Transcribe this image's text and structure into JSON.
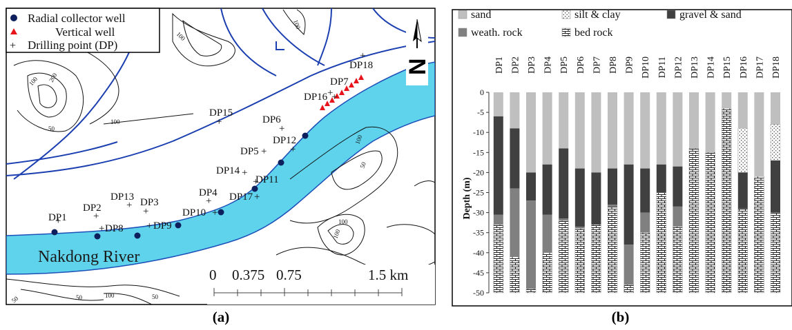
{
  "panel_a": {
    "caption": "(a)",
    "legend": {
      "radial": "Radial collector well",
      "vertical": "Vertical well",
      "drilling": "Drilling point (DP)"
    },
    "north_label": "N",
    "river_label": "Nakdong River",
    "scale": {
      "ticks": [
        "0",
        "0.375",
        "0.75",
        "1.5 km"
      ]
    },
    "contour_labels": [
      "100",
      "100",
      "100",
      "200",
      "100",
      "50",
      "100",
      "50",
      "100",
      "100",
      "50",
      "100",
      "50",
      "50",
      "100"
    ],
    "drilling_points": [
      {
        "name": "DP1"
      },
      {
        "name": "DP2"
      },
      {
        "name": "DP3"
      },
      {
        "name": "DP4"
      },
      {
        "name": "DP5"
      },
      {
        "name": "DP6"
      },
      {
        "name": "DP7"
      },
      {
        "name": "DP8"
      },
      {
        "name": "DP9"
      },
      {
        "name": "DP10"
      },
      {
        "name": "DP11"
      },
      {
        "name": "DP12"
      },
      {
        "name": "DP13"
      },
      {
        "name": "DP14"
      },
      {
        "name": "DP15"
      },
      {
        "name": "DP16"
      },
      {
        "name": "DP17"
      },
      {
        "name": "DP18"
      }
    ]
  },
  "panel_b": {
    "caption": "(b)"
  },
  "chart_data": {
    "type": "bar",
    "orientation": "stacked-vertical",
    "ylabel": "Depth (m)",
    "ylim": [
      -50,
      0
    ],
    "yticks": [
      0,
      -5,
      -10,
      -15,
      -20,
      -25,
      -30,
      -35,
      -40,
      -45,
      -50
    ],
    "grid": false,
    "legend_position": "top",
    "categories": [
      "DP1",
      "DP2",
      "DP3",
      "DP4",
      "DP5",
      "DP6",
      "DP7",
      "DP8",
      "DP9",
      "DP10",
      "DP11",
      "DP12",
      "DP13",
      "DP14",
      "DP15",
      "DP16",
      "DP17",
      "DP18"
    ],
    "series": [
      {
        "name": "sand",
        "color": "#bfbfbf",
        "pattern": "solid"
      },
      {
        "name": "silt & clay",
        "color": "#ffffff",
        "pattern": "dots"
      },
      {
        "name": "gravel & sand",
        "color": "#404040",
        "pattern": "solid"
      },
      {
        "name": "weath. rock",
        "color": "#808080",
        "pattern": "solid"
      },
      {
        "name": "bed rock",
        "color": "#ffffff",
        "pattern": "brick"
      }
    ],
    "columns": [
      {
        "category": "DP1",
        "layers": [
          [
            "sand",
            0,
            -6
          ],
          [
            "gravel & sand",
            -6,
            -30.5
          ],
          [
            "weath. rock",
            -30.5,
            -33
          ],
          [
            "bed rock",
            -33,
            -50
          ]
        ]
      },
      {
        "category": "DP2",
        "layers": [
          [
            "sand",
            0,
            -9
          ],
          [
            "gravel & sand",
            -9,
            -24
          ],
          [
            "weath. rock",
            -24,
            -41
          ],
          [
            "bed rock",
            -41,
            -50
          ]
        ]
      },
      {
        "category": "DP3",
        "layers": [
          [
            "sand",
            0,
            -20
          ],
          [
            "gravel & sand",
            -20,
            -27
          ],
          [
            "weath. rock",
            -27,
            -49
          ],
          [
            "bed rock",
            -49,
            -50
          ]
        ]
      },
      {
        "category": "DP4",
        "layers": [
          [
            "sand",
            0,
            -18
          ],
          [
            "gravel & sand",
            -18,
            -30.5
          ],
          [
            "weath. rock",
            -30.5,
            -40
          ],
          [
            "bed rock",
            -40,
            -50
          ]
        ]
      },
      {
        "category": "DP5",
        "layers": [
          [
            "sand",
            0,
            -14
          ],
          [
            "gravel & sand",
            -14,
            -31.5
          ],
          [
            "weath. rock",
            -31.5,
            -32
          ],
          [
            "bed rock",
            -32,
            -50
          ]
        ]
      },
      {
        "category": "DP6",
        "layers": [
          [
            "sand",
            0,
            -19
          ],
          [
            "gravel & sand",
            -19,
            -33.5
          ],
          [
            "weath. rock",
            -33.5,
            -34
          ],
          [
            "bed rock",
            -34,
            -50
          ]
        ]
      },
      {
        "category": "DP7",
        "layers": [
          [
            "sand",
            0,
            -20
          ],
          [
            "gravel & sand",
            -20,
            -33
          ],
          [
            "bed rock",
            -33,
            -50
          ]
        ]
      },
      {
        "category": "DP8",
        "layers": [
          [
            "sand",
            0,
            -19
          ],
          [
            "gravel & sand",
            -19,
            -28
          ],
          [
            "weath. rock",
            -28,
            -28.5
          ],
          [
            "bed rock",
            -28.5,
            -50
          ]
        ]
      },
      {
        "category": "DP9",
        "layers": [
          [
            "sand",
            0,
            -18
          ],
          [
            "gravel & sand",
            -18,
            -38
          ],
          [
            "weath. rock",
            -38,
            -48
          ],
          [
            "bed rock",
            -48,
            -50
          ]
        ]
      },
      {
        "category": "DP10",
        "layers": [
          [
            "sand",
            0,
            -19
          ],
          [
            "gravel & sand",
            -19,
            -30
          ],
          [
            "weath. rock",
            -30,
            -35
          ],
          [
            "bed rock",
            -35,
            -50
          ]
        ]
      },
      {
        "category": "DP11",
        "layers": [
          [
            "sand",
            0,
            -18
          ],
          [
            "gravel & sand",
            -18,
            -25
          ],
          [
            "bed rock",
            -25,
            -50
          ]
        ]
      },
      {
        "category": "DP12",
        "layers": [
          [
            "sand",
            0,
            -18.5
          ],
          [
            "gravel & sand",
            -18.5,
            -28.5
          ],
          [
            "weath. rock",
            -28.5,
            -33.5
          ],
          [
            "bed rock",
            -33.5,
            -50
          ]
        ]
      },
      {
        "category": "DP13",
        "layers": [
          [
            "sand",
            0,
            -14
          ],
          [
            "bed rock",
            -14,
            -50
          ]
        ]
      },
      {
        "category": "DP14",
        "layers": [
          [
            "sand",
            0,
            -15
          ],
          [
            "bed rock",
            -15,
            -50
          ]
        ]
      },
      {
        "category": "DP15",
        "layers": [
          [
            "sand",
            0,
            -4
          ],
          [
            "bed rock",
            -4,
            -50
          ]
        ]
      },
      {
        "category": "DP16",
        "layers": [
          [
            "sand",
            0,
            -9
          ],
          [
            "silt & clay",
            -9,
            -20
          ],
          [
            "gravel & sand",
            -20,
            -29
          ],
          [
            "bed rock",
            -29,
            -50
          ]
        ]
      },
      {
        "category": "DP17",
        "layers": [
          [
            "sand",
            0,
            -21
          ],
          [
            "bed rock",
            -21,
            -50
          ]
        ]
      },
      {
        "category": "DP18",
        "layers": [
          [
            "sand",
            0,
            -8
          ],
          [
            "silt & clay",
            -8,
            -17
          ],
          [
            "gravel & sand",
            -17,
            -30
          ],
          [
            "bed rock",
            -30,
            -50
          ]
        ]
      }
    ]
  }
}
